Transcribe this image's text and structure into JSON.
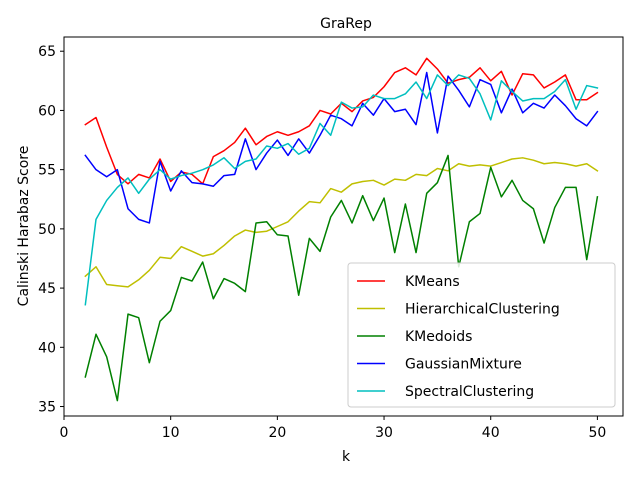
{
  "chart_data": {
    "type": "line",
    "title": "GraRep",
    "xlabel": "k",
    "ylabel": "Calinski Harabaz Score",
    "xlim": [
      0,
      52.4
    ],
    "ylim": [
      34.2,
      66.2
    ],
    "xticks": [
      0,
      10,
      20,
      30,
      40,
      50
    ],
    "yticks": [
      35,
      40,
      45,
      50,
      55,
      60,
      65
    ],
    "grid": false,
    "legend_position": "lower-right",
    "x": [
      2,
      3,
      4,
      5,
      6,
      7,
      8,
      9,
      10,
      11,
      12,
      13,
      14,
      15,
      16,
      17,
      18,
      19,
      20,
      21,
      22,
      23,
      24,
      25,
      26,
      27,
      28,
      29,
      30,
      31,
      32,
      33,
      34,
      35,
      36,
      37,
      38,
      39,
      40,
      41,
      42,
      43,
      44,
      45,
      46,
      47,
      48,
      49,
      50
    ],
    "series": [
      {
        "name": "KMeans",
        "color": "#ff0000",
        "values": [
          58.8,
          59.4,
          56.9,
          54.6,
          53.8,
          54.6,
          54.3,
          55.9,
          54.0,
          54.8,
          54.6,
          53.8,
          56.1,
          56.6,
          57.3,
          58.5,
          57.1,
          57.8,
          58.2,
          57.9,
          58.2,
          58.7,
          60.0,
          59.7,
          60.6,
          59.9,
          60.8,
          61.1,
          62.0,
          63.2,
          63.6,
          63.0,
          64.4,
          63.5,
          62.3,
          62.6,
          62.8,
          63.6,
          62.5,
          63.3,
          61.3,
          63.1,
          63.0,
          61.9,
          62.4,
          63.0,
          60.9,
          60.9,
          61.5
        ]
      },
      {
        "name": "HierarchicalClustering",
        "color": "#bfbf00",
        "values": [
          46.0,
          46.8,
          45.3,
          45.2,
          45.1,
          45.7,
          46.5,
          47.6,
          47.5,
          48.5,
          48.1,
          47.7,
          47.9,
          48.6,
          49.4,
          49.9,
          49.7,
          49.8,
          50.2,
          50.6,
          51.5,
          52.3,
          52.2,
          53.4,
          53.1,
          53.8,
          54.0,
          54.1,
          53.7,
          54.2,
          54.1,
          54.6,
          54.5,
          55.1,
          54.9,
          55.5,
          55.3,
          55.4,
          55.3,
          55.6,
          55.9,
          56.0,
          55.8,
          55.5,
          55.6,
          55.5,
          55.3,
          55.5,
          54.9
        ]
      },
      {
        "name": "KMedoids",
        "color": "#008000",
        "values": [
          37.5,
          41.1,
          39.2,
          35.5,
          42.8,
          42.5,
          38.7,
          42.2,
          43.1,
          45.9,
          45.6,
          47.2,
          44.1,
          45.8,
          45.4,
          44.7,
          50.5,
          50.6,
          49.5,
          49.4,
          44.4,
          49.2,
          48.1,
          51.0,
          52.4,
          50.5,
          52.8,
          50.7,
          52.6,
          48.0,
          52.1,
          48.0,
          53.0,
          53.9,
          56.2,
          46.8,
          50.6,
          51.3,
          55.2,
          52.7,
          54.1,
          52.4,
          51.7,
          48.8,
          51.8,
          53.5,
          53.5,
          47.4,
          52.7
        ]
      },
      {
        "name": "GaussianMixture",
        "color": "#0000ff",
        "values": [
          56.2,
          55.0,
          54.4,
          55.0,
          51.7,
          50.8,
          50.5,
          55.7,
          53.2,
          54.9,
          53.9,
          53.8,
          53.6,
          54.5,
          54.6,
          57.6,
          55.0,
          56.4,
          57.5,
          56.2,
          57.6,
          56.4,
          57.9,
          59.6,
          59.3,
          58.7,
          60.6,
          59.6,
          61.0,
          59.9,
          60.1,
          58.8,
          63.2,
          58.1,
          62.9,
          61.7,
          60.3,
          62.6,
          62.2,
          59.8,
          61.8,
          59.8,
          60.6,
          60.2,
          61.3,
          60.4,
          59.3,
          58.7,
          59.9
        ]
      },
      {
        "name": "SpectralClustering",
        "color": "#00bfbf",
        "values": [
          43.6,
          50.8,
          52.4,
          53.5,
          54.3,
          53.0,
          54.2,
          55.0,
          54.2,
          54.5,
          54.7,
          55.0,
          55.4,
          56.0,
          55.1,
          55.7,
          55.9,
          57.0,
          56.8,
          57.2,
          56.3,
          56.8,
          58.9,
          57.9,
          60.7,
          60.2,
          60.3,
          61.3,
          61.0,
          61.0,
          61.4,
          62.4,
          61.0,
          63.0,
          62.1,
          63.0,
          62.7,
          61.4,
          59.2,
          62.5,
          61.6,
          60.8,
          61.0,
          61.0,
          61.6,
          62.6,
          60.1,
          62.1,
          61.9
        ]
      }
    ]
  }
}
